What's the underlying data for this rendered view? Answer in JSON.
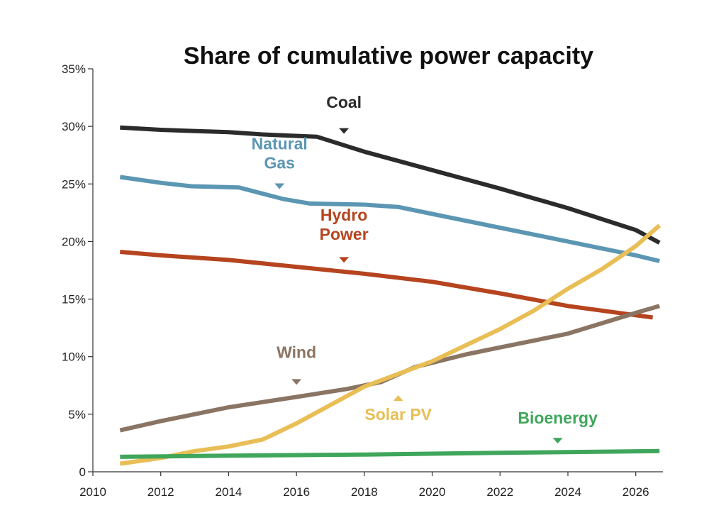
{
  "chart_data": {
    "type": "line",
    "title": "Share of cumulative power capacity",
    "xlabel": "",
    "ylabel": "",
    "xlim": [
      2010,
      2026.8
    ],
    "ylim": [
      0,
      35
    ],
    "grid": false,
    "legend": "inline labels",
    "x_ticks": [
      "2010",
      "2012",
      "2014",
      "2016",
      "2018",
      "2020",
      "2022",
      "2024",
      "2026"
    ],
    "y_ticks": [
      "0",
      "5%",
      "10%",
      "15%",
      "20%",
      "25%",
      "30%",
      "35%"
    ],
    "series": [
      {
        "name": "Coal",
        "color": "#2b2b2b",
        "x": [
          2010.8,
          2012,
          2014,
          2015,
          2016.6,
          2018,
          2020,
          2022,
          2024,
          2026,
          2026.7
        ],
        "values": [
          29.9,
          29.7,
          29.5,
          29.3,
          29.1,
          27.8,
          26.2,
          24.6,
          22.9,
          21.0,
          19.9
        ]
      },
      {
        "name": "Natural Gas",
        "color": "#5b96b3",
        "x": [
          2010.8,
          2012,
          2012.9,
          2014.3,
          2015.6,
          2016.4,
          2018,
          2019,
          2020,
          2022,
          2024,
          2026,
          2026.7
        ],
        "values": [
          25.6,
          25.1,
          24.8,
          24.7,
          23.7,
          23.3,
          23.2,
          23.0,
          22.4,
          21.2,
          20.0,
          18.8,
          18.3
        ]
      },
      {
        "name": "Hydro Power",
        "color": "#b5441f",
        "x": [
          2010.8,
          2012,
          2014,
          2016,
          2018,
          2020,
          2022,
          2024,
          2026,
          2026.5
        ],
        "values": [
          19.1,
          18.8,
          18.4,
          17.8,
          17.2,
          16.5,
          15.5,
          14.4,
          13.6,
          13.4
        ]
      },
      {
        "name": "Wind",
        "color": "#8a7463",
        "x": [
          2010.8,
          2012,
          2014,
          2016,
          2017.5,
          2018.5,
          2019.5,
          2021,
          2022,
          2024,
          2026,
          2026.7
        ],
        "values": [
          3.6,
          4.4,
          5.6,
          6.5,
          7.2,
          7.8,
          9.1,
          10.2,
          10.8,
          12.0,
          13.8,
          14.4
        ]
      },
      {
        "name": "Solar PV",
        "color": "#e8be55",
        "x": [
          2010.8,
          2012,
          2013,
          2014,
          2015,
          2016,
          2017,
          2018,
          2019,
          2020,
          2021,
          2022,
          2023,
          2024,
          2025,
          2026,
          2026.7
        ],
        "values": [
          0.7,
          1.2,
          1.8,
          2.2,
          2.8,
          4.2,
          5.8,
          7.4,
          8.5,
          9.6,
          11.0,
          12.4,
          14.0,
          15.9,
          17.6,
          19.6,
          21.4
        ]
      },
      {
        "name": "Bioenergy",
        "color": "#3fa65b",
        "x": [
          2010.8,
          2014,
          2018,
          2022,
          2026.7
        ],
        "values": [
          1.3,
          1.4,
          1.5,
          1.65,
          1.8
        ]
      }
    ],
    "labels": [
      {
        "lines": [
          "Coal"
        ],
        "series": 0,
        "x": 2017.4,
        "y": 31.6,
        "arrow_x": 2017.4,
        "arrow_y": 29.6,
        "arrow_dir": "down"
      },
      {
        "lines": [
          "Natural",
          "Gas"
        ],
        "series": 1,
        "x": 2015.5,
        "y": 28.0,
        "arrow_x": 2015.5,
        "arrow_y": 24.8,
        "arrow_dir": "down"
      },
      {
        "lines": [
          "Hydro",
          "Power"
        ],
        "series": 2,
        "x": 2017.4,
        "y": 21.8,
        "arrow_x": 2017.4,
        "arrow_y": 18.4,
        "arrow_dir": "down"
      },
      {
        "lines": [
          "Wind"
        ],
        "series": 3,
        "x": 2016.0,
        "y": 9.9,
        "arrow_x": 2016.0,
        "arrow_y": 7.8,
        "arrow_dir": "down"
      },
      {
        "lines": [
          "Solar PV"
        ],
        "series": 4,
        "x": 2019.0,
        "y": 4.5,
        "arrow_x": 2019.0,
        "arrow_y": 6.4,
        "arrow_dir": "up"
      },
      {
        "lines": [
          "Bioenergy"
        ],
        "series": 5,
        "x": 2023.7,
        "y": 4.2,
        "arrow_x": 2023.7,
        "arrow_y": 2.7,
        "arrow_dir": "down"
      }
    ]
  }
}
